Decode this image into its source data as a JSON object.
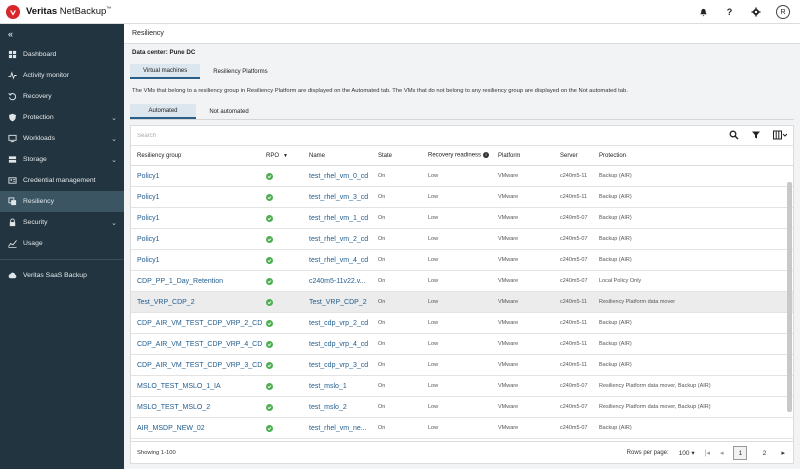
{
  "app": {
    "brand_bold": "Veritas",
    "brand_rest": " NetBackup",
    "brand_tm": "™",
    "avatar_letter": "R"
  },
  "sidebar": {
    "collapse_glyph": "«",
    "items": [
      {
        "label": "Dashboard",
        "icon": "dashboard-icon",
        "has_chevron": false
      },
      {
        "label": "Activity monitor",
        "icon": "activity-icon",
        "has_chevron": false
      },
      {
        "label": "Recovery",
        "icon": "recovery-icon",
        "has_chevron": false
      },
      {
        "label": "Protection",
        "icon": "shield-icon",
        "has_chevron": true
      },
      {
        "label": "Workloads",
        "icon": "workloads-icon",
        "has_chevron": true
      },
      {
        "label": "Storage",
        "icon": "storage-icon",
        "has_chevron": true
      },
      {
        "label": "Credential management",
        "icon": "credential-icon",
        "has_chevron": false
      },
      {
        "label": "Resiliency",
        "icon": "resiliency-icon",
        "has_chevron": false,
        "active": true
      },
      {
        "label": "Security",
        "icon": "lock-icon",
        "has_chevron": true
      },
      {
        "label": "Usage",
        "icon": "usage-icon",
        "has_chevron": false
      },
      {
        "label": "Veritas SaaS Backup",
        "icon": "saas-icon",
        "has_chevron": false
      }
    ]
  },
  "page": {
    "title": "Resiliency",
    "datacenter_label": "Data center:",
    "datacenter_value": "Pune DC",
    "tabs": [
      "Virtual machines",
      "Resiliency Platforms"
    ],
    "info_text": "The VMs that belong to a resiliency group in Resiliency Platform are displayed on the Automated tab. The VMs that do not belong to any resiliency group are displayed on the Not automated tab.",
    "subtabs": [
      "Automated",
      "Not automated"
    ]
  },
  "table": {
    "search_placeholder": "Search",
    "columns": {
      "rg": "Resiliency group",
      "rpo": "RPO",
      "name": "Name",
      "state": "State",
      "rr": "Recovery readiness",
      "platform": "Platform",
      "server": "Server",
      "protection": "Protection"
    },
    "rows": [
      {
        "rg": "Policy1",
        "name": "test_rhel_vm_0_cd",
        "state": "On",
        "rr": "Low",
        "platform": "VMware",
        "server": "c240m5-11",
        "protection": "Backup (AIR)"
      },
      {
        "rg": "Policy1",
        "name": "test_rhel_vm_3_cd",
        "state": "On",
        "rr": "Low",
        "platform": "VMware",
        "server": "c240m5-11",
        "protection": "Backup (AIR)"
      },
      {
        "rg": "Policy1",
        "name": "test_rhel_vm_1_cd",
        "state": "On",
        "rr": "Low",
        "platform": "VMware",
        "server": "c240m5-07",
        "protection": "Backup (AIR)"
      },
      {
        "rg": "Policy1",
        "name": "test_rhel_vm_2_cd",
        "state": "On",
        "rr": "Low",
        "platform": "VMware",
        "server": "c240m5-07",
        "protection": "Backup (AIR)"
      },
      {
        "rg": "Policy1",
        "name": "test_rhel_vm_4_cd",
        "state": "On",
        "rr": "Low",
        "platform": "VMware",
        "server": "c240m5-07",
        "protection": "Backup (AIR)"
      },
      {
        "rg": "CDP_PP_1_Day_Retention",
        "name": "c240m5-11v22.v...",
        "state": "On",
        "rr": "Low",
        "platform": "VMware",
        "server": "c240m5-07",
        "protection": "Local Policy Only"
      },
      {
        "rg": "Test_VRP_CDP_2",
        "name": "Test_VRP_CDP_2",
        "state": "On",
        "rr": "Low",
        "platform": "VMware",
        "server": "c240m5-11",
        "protection": "Resiliency Platform data mover",
        "highlight": true
      },
      {
        "rg": "CDP_AIR_VM_TEST_CDP_VRP_2_CD",
        "name": "test_cdp_vrp_2_cd",
        "state": "On",
        "rr": "Low",
        "platform": "VMware",
        "server": "c240m5-11",
        "protection": "Backup (AIR)"
      },
      {
        "rg": "CDP_AIR_VM_TEST_CDP_VRP_4_CD",
        "name": "test_cdp_vrp_4_cd",
        "state": "On",
        "rr": "Low",
        "platform": "VMware",
        "server": "c240m5-11",
        "protection": "Backup (AIR)"
      },
      {
        "rg": "CDP_AIR_VM_TEST_CDP_VRP_3_CD",
        "name": "test_cdp_vrp_3_cd",
        "state": "On",
        "rr": "Low",
        "platform": "VMware",
        "server": "c240m5-11",
        "protection": "Backup (AIR)"
      },
      {
        "rg": "MSLO_TEST_MSLO_1_IA",
        "name": "test_mslo_1",
        "state": "On",
        "rr": "Low",
        "platform": "VMware",
        "server": "c240m5-07",
        "protection": "Resiliency Platform data mover, Backup (AIR)"
      },
      {
        "rg": "MSLO_TEST_MSLO_2",
        "name": "test_mslo_2",
        "state": "On",
        "rr": "Low",
        "platform": "VMware",
        "server": "c240m5-07",
        "protection": "Resiliency Platform data mover, Backup (AIR)"
      },
      {
        "rg": "AIR_MSDP_NEW_02",
        "name": "test_rhel_vm_ne...",
        "state": "On",
        "rr": "Low",
        "platform": "VMware",
        "server": "c240m5-07",
        "protection": "Backup (AIR)"
      }
    ],
    "footer": {
      "showing": "Showing 1-100",
      "rows_per_page_label": "Rows per page:",
      "rows_per_page_value": "100",
      "pages": [
        "1",
        "2"
      ],
      "current_page": "1"
    }
  },
  "colors": {
    "sidebar_bg": "#22343f",
    "brand_red": "#d8262b",
    "link_blue": "#1f5c8f",
    "status_green": "#4caf50"
  }
}
